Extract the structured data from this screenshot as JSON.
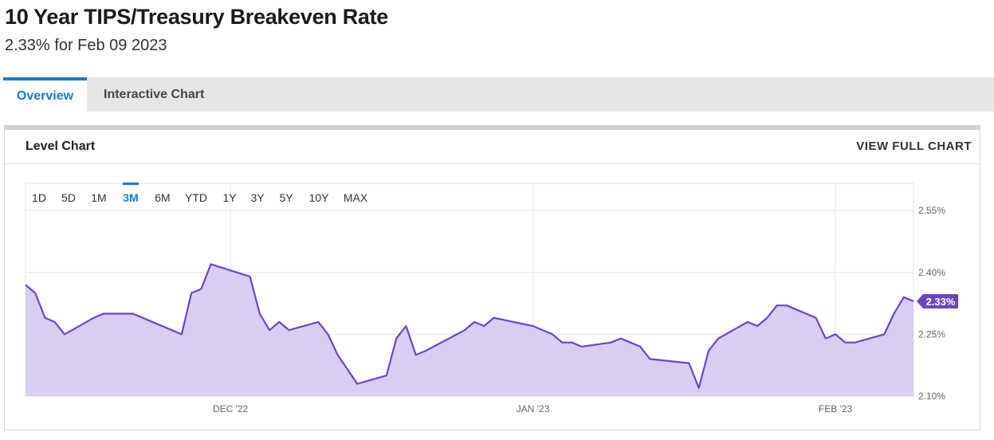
{
  "header": {
    "title": "10 Year TIPS/Treasury Breakeven Rate",
    "subtitle": "2.33% for Feb 09 2023"
  },
  "tabs": [
    {
      "label": "Overview",
      "active": true
    },
    {
      "label": "Interactive Chart",
      "active": false
    }
  ],
  "panel": {
    "title": "Level Chart",
    "full_chart_label": "VIEW FULL CHART"
  },
  "range_buttons": [
    {
      "label": "1D",
      "active": false
    },
    {
      "label": "5D",
      "active": false
    },
    {
      "label": "1M",
      "active": false
    },
    {
      "label": "3M",
      "active": true
    },
    {
      "label": "6M",
      "active": false
    },
    {
      "label": "YTD",
      "active": false
    },
    {
      "label": "1Y",
      "active": false
    },
    {
      "label": "3Y",
      "active": false
    },
    {
      "label": "5Y",
      "active": false
    },
    {
      "label": "10Y",
      "active": false
    },
    {
      "label": "MAX",
      "active": false
    }
  ],
  "colors": {
    "accent": "#1a7bc6",
    "series_line": "#6b46c1",
    "series_fill": "#d9cdf2",
    "last_value_badge": "#6b46c1"
  },
  "chart_data": {
    "type": "area",
    "title": "",
    "xlabel": "",
    "ylabel": "",
    "ylim": [
      2.1,
      2.616
    ],
    "yticks": [
      2.1,
      2.25,
      2.4,
      2.55
    ],
    "ytick_labels": [
      "2.10%",
      "2.25%",
      "2.40%",
      "2.55%"
    ],
    "xticks": [
      "2022-12-01",
      "2023-01-01",
      "2023-02-01"
    ],
    "xtick_labels": [
      "DEC '22",
      "JAN '23",
      "FEB '23"
    ],
    "grid": true,
    "last_value_label": "2.33%",
    "series": [
      {
        "values": [
          [
            "2022-11-10",
            2.37
          ],
          [
            "2022-11-11",
            2.35
          ],
          [
            "2022-11-12",
            2.29
          ],
          [
            "2022-11-13",
            2.28
          ],
          [
            "2022-11-14",
            2.25
          ],
          [
            "2022-11-17",
            2.29
          ],
          [
            "2022-11-18",
            2.3
          ],
          [
            "2022-11-21",
            2.3
          ],
          [
            "2022-11-25",
            2.26
          ],
          [
            "2022-11-26",
            2.25
          ],
          [
            "2022-11-27",
            2.35
          ],
          [
            "2022-11-28",
            2.36
          ],
          [
            "2022-11-29",
            2.42
          ],
          [
            "2022-12-03",
            2.39
          ],
          [
            "2022-12-04",
            2.3
          ],
          [
            "2022-12-05",
            2.26
          ],
          [
            "2022-12-06",
            2.28
          ],
          [
            "2022-12-07",
            2.26
          ],
          [
            "2022-12-10",
            2.28
          ],
          [
            "2022-12-11",
            2.25
          ],
          [
            "2022-12-12",
            2.2
          ],
          [
            "2022-12-14",
            2.13
          ],
          [
            "2022-12-17",
            2.15
          ],
          [
            "2022-12-18",
            2.24
          ],
          [
            "2022-12-19",
            2.27
          ],
          [
            "2022-12-20",
            2.2
          ],
          [
            "2022-12-21",
            2.21
          ],
          [
            "2022-12-25",
            2.26
          ],
          [
            "2022-12-26",
            2.28
          ],
          [
            "2022-12-27",
            2.27
          ],
          [
            "2022-12-28",
            2.29
          ],
          [
            "2023-01-01",
            2.27
          ],
          [
            "2023-01-03",
            2.25
          ],
          [
            "2023-01-04",
            2.23
          ],
          [
            "2023-01-05",
            2.23
          ],
          [
            "2023-01-06",
            2.22
          ],
          [
            "2023-01-09",
            2.23
          ],
          [
            "2023-01-10",
            2.24
          ],
          [
            "2023-01-11",
            2.23
          ],
          [
            "2023-01-12",
            2.22
          ],
          [
            "2023-01-13",
            2.19
          ],
          [
            "2023-01-17",
            2.18
          ],
          [
            "2023-01-18",
            2.12
          ],
          [
            "2023-01-19",
            2.21
          ],
          [
            "2023-01-20",
            2.24
          ],
          [
            "2023-01-23",
            2.28
          ],
          [
            "2023-01-24",
            2.27
          ],
          [
            "2023-01-25",
            2.29
          ],
          [
            "2023-01-26",
            2.32
          ],
          [
            "2023-01-27",
            2.32
          ],
          [
            "2023-01-30",
            2.29
          ],
          [
            "2023-01-31",
            2.24
          ],
          [
            "2023-02-01",
            2.25
          ],
          [
            "2023-02-02",
            2.23
          ],
          [
            "2023-02-03",
            2.23
          ],
          [
            "2023-02-06",
            2.25
          ],
          [
            "2023-02-07",
            2.3
          ],
          [
            "2023-02-08",
            2.34
          ],
          [
            "2023-02-09",
            2.33
          ]
        ]
      }
    ]
  }
}
